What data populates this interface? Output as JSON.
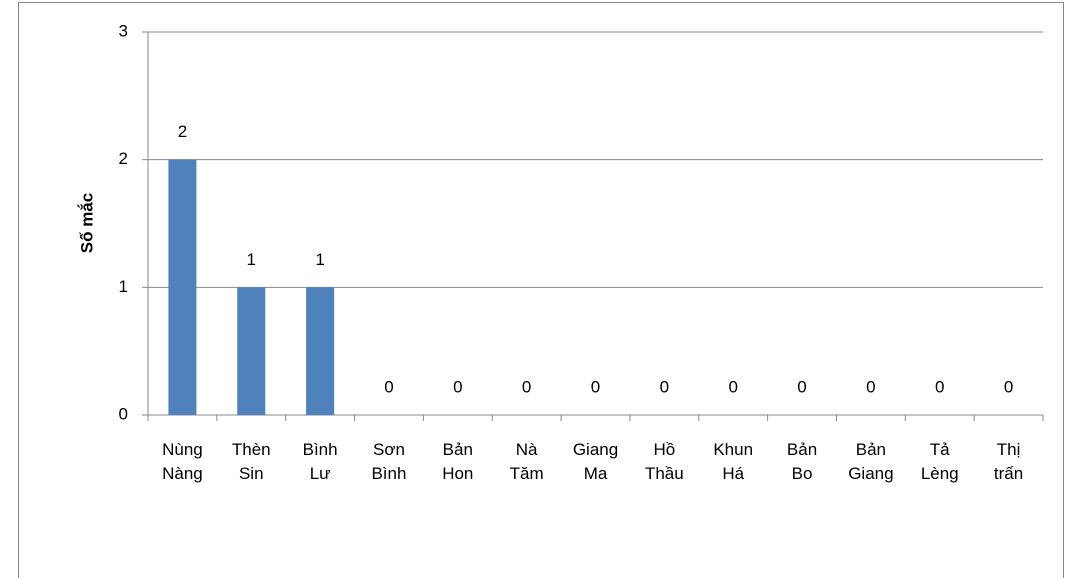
{
  "chart_data": {
    "type": "bar",
    "y_label": "Số mắc",
    "categories": [
      "Nùng Nàng",
      "Thèn Sin",
      "Bình Lư",
      "Sơn Bình",
      "Bản Hon",
      "Nà Tăm",
      "Giang Ma",
      "Hồ Thầu",
      "Khun Há",
      "Bản Bo",
      "Bản Giang",
      "Tả Lèng",
      "Thị trấn"
    ],
    "values": [
      2,
      1,
      1,
      0,
      0,
      0,
      0,
      0,
      0,
      0,
      0,
      0,
      0
    ],
    "color": "#4f81bd",
    "ylim": [
      0,
      3
    ],
    "yticks": [
      0,
      1,
      2,
      3
    ],
    "grid": true
  }
}
